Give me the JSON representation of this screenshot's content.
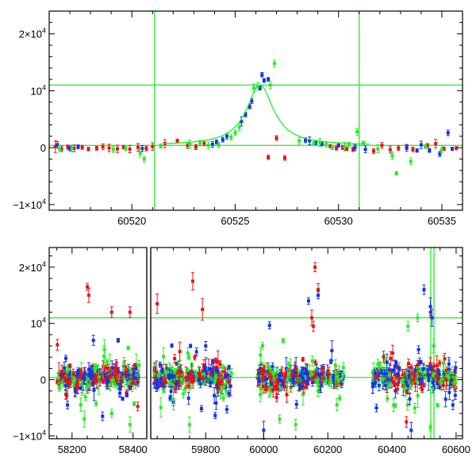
{
  "colors": {
    "red": "#ee1111",
    "blue": "#1133ee",
    "green": "#22ee22",
    "frame": "#000000",
    "background": "#ffffff"
  },
  "chart_data": [
    {
      "type": "scatter",
      "panel": "top",
      "title": "",
      "xlabel": "",
      "ylabel": "",
      "xlim": [
        60516,
        60536
      ],
      "ylim": [
        -11000,
        24000
      ],
      "x_tick_labels": [
        "60520",
        "60525",
        "60530",
        "60535"
      ],
      "x_tick_values": [
        60520,
        60525,
        60530,
        60535
      ],
      "y_tick_labels": [
        {
          "value": 20000,
          "mantissa": "2×10",
          "exp": "4"
        },
        {
          "value": 10000,
          "mantissa": "10",
          "exp": "4"
        },
        {
          "value": 0,
          "mantissa": "0",
          "exp": ""
        },
        {
          "value": -10000,
          "mantissa": "−1×10",
          "exp": "4"
        }
      ],
      "reference_lines": {
        "vertical_x": [
          60521.1,
          60531.0
        ],
        "horizontal_y": [
          11000,
          400
        ]
      },
      "model_curve": {
        "name": "",
        "color": "green",
        "baseline": 400,
        "peak": 10600,
        "t0": 60526.2,
        "width": 0.8,
        "x_range": [
          60521.5,
          60531.5
        ]
      },
      "series": [
        {
          "color": "red",
          "points": [
            [
              60516.3,
              200
            ],
            [
              60516.6,
              -200
            ],
            [
              60516.9,
              100
            ],
            [
              60517.2,
              -100
            ],
            [
              60517.6,
              50
            ],
            [
              60517.9,
              -250
            ],
            [
              60518.3,
              -100
            ],
            [
              60518.6,
              150
            ],
            [
              60518.9,
              -50
            ],
            [
              60519.3,
              -200
            ],
            [
              60519.6,
              100
            ],
            [
              60519.9,
              -250
            ],
            [
              60520.3,
              50
            ],
            [
              60520.7,
              -150
            ],
            [
              60521.0,
              200
            ],
            [
              60521.6,
              700
            ],
            [
              60522.2,
              1150
            ],
            [
              60522.7,
              400
            ],
            [
              60523.1,
              100
            ],
            [
              60523.5,
              800
            ],
            [
              60526.6,
              -1700
            ],
            [
              60527.0,
              1700
            ],
            [
              60527.4,
              -1800
            ],
            [
              60529.6,
              250
            ],
            [
              60529.9,
              -100
            ],
            [
              60530.2,
              50
            ],
            [
              60530.4,
              -200
            ],
            [
              60530.7,
              -300
            ],
            [
              60531.7,
              -600
            ],
            [
              60532.1,
              400
            ],
            [
              60532.5,
              -350
            ],
            [
              60532.9,
              -100
            ],
            [
              60533.3,
              150
            ],
            [
              60533.6,
              -300
            ],
            [
              60534.3,
              350
            ],
            [
              60534.7,
              700
            ],
            [
              60535.1,
              -200
            ],
            [
              60535.7,
              -100
            ]
          ]
        },
        {
          "color": "blue",
          "points": [
            [
              60516.4,
              500
            ],
            [
              60517.0,
              -150
            ],
            [
              60517.4,
              150
            ],
            [
              60520.5,
              -150
            ],
            [
              60523.9,
              600
            ],
            [
              60524.1,
              1000
            ],
            [
              60524.4,
              1400
            ],
            [
              60524.6,
              2000
            ],
            [
              60525.3,
              4600
            ],
            [
              60525.5,
              5800
            ],
            [
              60525.7,
              7200
            ],
            [
              60525.8,
              8200
            ],
            [
              60526.2,
              10500
            ],
            [
              60526.3,
              12800
            ],
            [
              60526.4,
              11800
            ],
            [
              60526.6,
              12000
            ],
            [
              60528.4,
              1300
            ],
            [
              60528.6,
              1200
            ],
            [
              60528.9,
              900
            ],
            [
              60529.2,
              700
            ],
            [
              60530.0,
              400
            ],
            [
              60530.8,
              0
            ],
            [
              60531.3,
              -300
            ],
            [
              60533.3,
              -100
            ],
            [
              60533.8,
              -500
            ],
            [
              60534.0,
              500
            ],
            [
              60534.4,
              -500
            ],
            [
              60534.9,
              -1100
            ],
            [
              60535.3,
              2600
            ],
            [
              60535.5,
              -200
            ]
          ]
        },
        {
          "color": "green",
          "points": [
            [
              60516.5,
              -200
            ],
            [
              60517.1,
              -150
            ],
            [
              60519.1,
              -300
            ],
            [
              60519.7,
              -150
            ],
            [
              60520.4,
              -1000
            ],
            [
              60520.6,
              -2000
            ],
            [
              60521.4,
              300
            ],
            [
              60522.8,
              600
            ],
            [
              60523.3,
              800
            ],
            [
              60523.7,
              400
            ],
            [
              60524.2,
              500
            ],
            [
              60524.8,
              1800
            ],
            [
              60525.0,
              2600
            ],
            [
              60525.2,
              3600
            ],
            [
              60525.9,
              10500
            ],
            [
              60526.1,
              10800
            ],
            [
              60526.7,
              11000
            ],
            [
              60526.9,
              14800
            ],
            [
              60528.1,
              1200
            ],
            [
              60528.8,
              700
            ],
            [
              60529.1,
              900
            ],
            [
              60529.4,
              600
            ],
            [
              60529.7,
              0
            ],
            [
              60530.3,
              150
            ],
            [
              60530.5,
              500
            ],
            [
              60530.9,
              2800
            ],
            [
              60531.2,
              800
            ],
            [
              60531.9,
              -200
            ],
            [
              60532.6,
              -1400
            ],
            [
              60532.8,
              -4500
            ],
            [
              60533.5,
              -2400
            ],
            [
              60534.2,
              200
            ],
            [
              60535.0,
              -300
            ]
          ]
        }
      ]
    },
    {
      "type": "scatter",
      "panel": "bottom",
      "title": "",
      "xlabel": "",
      "ylabel": "",
      "broken_x_axis": true,
      "segments": [
        {
          "xlim": [
            58125,
            58445
          ]
        },
        {
          "xlim": [
            59630,
            59900
          ]
        },
        {
          "xlim": [
            59920,
            60620
          ]
        }
      ],
      "ylim": [
        -10500,
        23500
      ],
      "x_tick_labels": [
        "58200",
        "58400",
        "59800",
        "60000",
        "60200",
        "60400",
        "60600"
      ],
      "x_tick_values": [
        58200,
        58400,
        59800,
        60000,
        60200,
        60400,
        60600
      ],
      "y_tick_labels": [
        {
          "value": 20000,
          "mantissa": "2×10",
          "exp": "4"
        },
        {
          "value": 10000,
          "mantissa": "10",
          "exp": "4"
        },
        {
          "value": 0,
          "mantissa": "0",
          "exp": ""
        },
        {
          "value": -10000,
          "mantissa": "−1×10",
          "exp": "4"
        }
      ],
      "reference_lines": {
        "vertical_x": [
          60521.1,
          60531.0
        ],
        "horizontal_y": [
          11000,
          400
        ]
      },
      "observing_seasons": [
        {
          "x_range": [
            58150,
            58420
          ],
          "color_mix": [
            "green",
            "red",
            "blue"
          ]
        },
        {
          "x_range": [
            59640,
            59880
          ],
          "color_mix": [
            "green",
            "red",
            "blue"
          ]
        },
        {
          "x_range": [
            59980,
            60250
          ],
          "color_mix": [
            "green",
            "red",
            "blue"
          ]
        },
        {
          "x_range": [
            60340,
            60600
          ],
          "color_mix": [
            "green",
            "blue",
            "red"
          ]
        }
      ],
      "outliers": [
        {
          "color": "red",
          "points": [
            [
              58250,
              16500
            ],
            [
              58255,
              15000
            ],
            [
              58330,
              12000
            ],
            [
              58390,
              12000
            ],
            [
              59650,
              13500
            ],
            [
              59720,
              5000
            ],
            [
              59760,
              17500
            ],
            [
              59790,
              12500
            ],
            [
              60160,
              20000
            ],
            [
              60170,
              16000
            ],
            [
              60150,
              11000
            ],
            [
              60155,
              9500
            ],
            [
              60445,
              -7500
            ],
            [
              60520,
              12000
            ],
            [
              60540,
              2500
            ]
          ]
        },
        {
          "color": "blue",
          "points": [
            [
              58185,
              -4500
            ],
            [
              58270,
              7000
            ],
            [
              58300,
              -6500
            ],
            [
              59700,
              -4000
            ],
            [
              59800,
              6000
            ],
            [
              60000,
              -9000
            ],
            [
              60140,
              14000
            ],
            [
              60170,
              15000
            ],
            [
              60500,
              16000
            ],
            [
              60520,
              13000
            ],
            [
              60525,
              11000
            ],
            [
              60460,
              -9000
            ],
            [
              60590,
              -4500
            ]
          ]
        },
        {
          "color": "green",
          "points": [
            [
              58240,
              -7000
            ],
            [
              58330,
              -6000
            ],
            [
              58390,
              -8000
            ],
            [
              59700,
              -3500
            ],
            [
              59750,
              -8000
            ],
            [
              60100,
              -8000
            ],
            [
              60050,
              -7000
            ],
            [
              60450,
              9500
            ],
            [
              60480,
              11000
            ],
            [
              60530,
              6000
            ],
            [
              60560,
              3000
            ],
            [
              60520,
              -8500
            ]
          ]
        }
      ]
    }
  ]
}
